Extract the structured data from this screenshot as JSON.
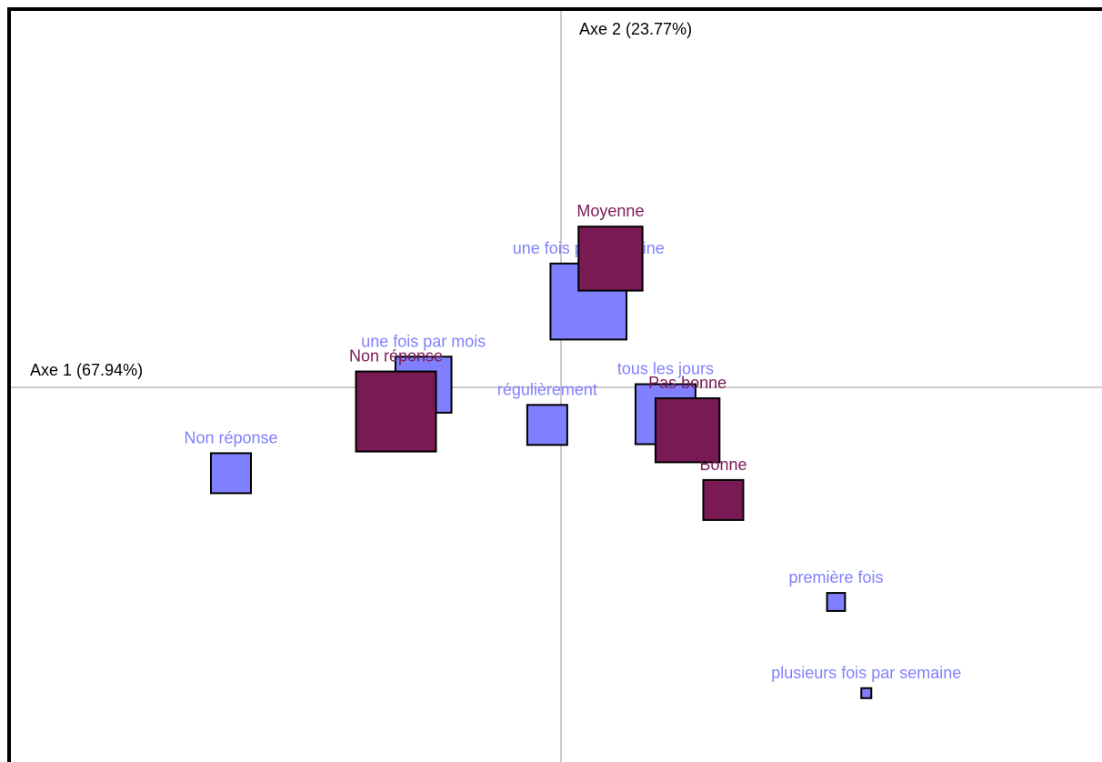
{
  "chart_data": {
    "type": "scatter",
    "title": "",
    "xlabel": "Axe 1 (67.94%)",
    "ylabel": "Axe 2 (23.77%)",
    "grid": false,
    "legend": "none",
    "xlim": [
      -1.0,
      1.0
    ],
    "ylim": [
      -0.7,
      0.7
    ],
    "colors": {
      "series1": "#8080ff",
      "series2": "#7a1a55",
      "axis": "#999999"
    },
    "series": [
      {
        "points": [
          {
            "label": "Non réponse",
            "x": -0.6,
            "y": -0.16,
            "size": 0.2
          },
          {
            "label": "une fois par mois",
            "x": -0.25,
            "y": 0.005,
            "size": 0.28
          },
          {
            "label": "une fois par semaine",
            "x": 0.05,
            "y": 0.16,
            "size": 0.38
          },
          {
            "label": "régulièrement",
            "x": -0.025,
            "y": -0.07,
            "size": 0.2
          },
          {
            "label": "tous les jours",
            "x": 0.19,
            "y": -0.05,
            "size": 0.3
          },
          {
            "label": "première fois",
            "x": 0.5,
            "y": -0.4,
            "size": 0.09
          },
          {
            "label": "plusieurs fois par semaine",
            "x": 0.555,
            "y": -0.57,
            "size": 0.05
          }
        ]
      },
      {
        "points": [
          {
            "label": "Moyenne",
            "x": 0.09,
            "y": 0.24,
            "size": 0.32
          },
          {
            "label": "Non réponse",
            "x": -0.3,
            "y": -0.045,
            "size": 0.4
          },
          {
            "label": "Pas bonne",
            "x": 0.23,
            "y": -0.08,
            "size": 0.32
          },
          {
            "label": "Bonne",
            "x": 0.295,
            "y": -0.21,
            "size": 0.2
          }
        ]
      }
    ]
  }
}
